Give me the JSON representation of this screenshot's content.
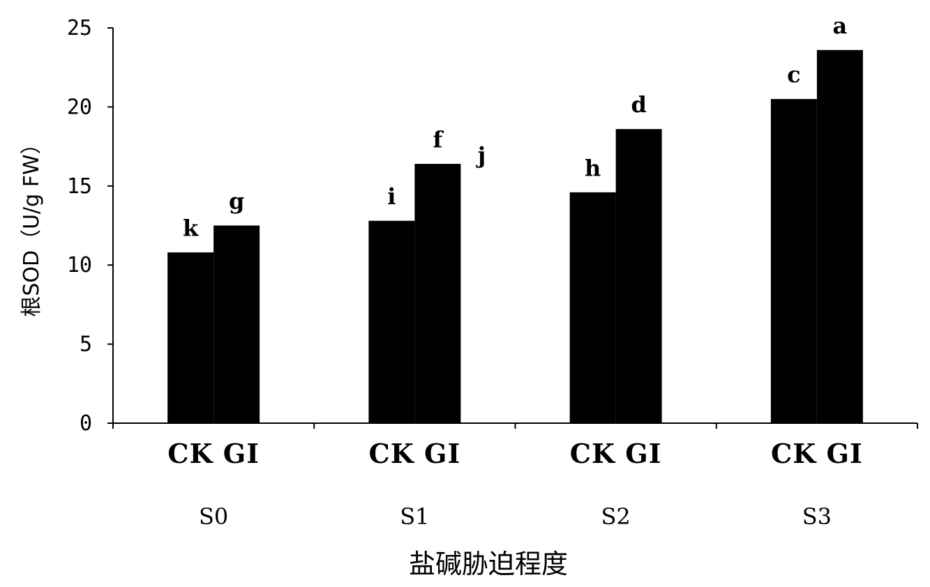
{
  "chart_data": {
    "type": "bar",
    "xlabel": "盐碱胁迫程度",
    "ylabel": "根SOD（U/g FW）",
    "ylim": [
      0,
      25
    ],
    "yticks": [
      0,
      5,
      10,
      15,
      20,
      25
    ],
    "groups": [
      "S0",
      "S1",
      "S2",
      "S3"
    ],
    "bar_pair_labels": [
      "CK GI",
      "CK GI",
      "CK GI",
      "CK GI"
    ],
    "series": [
      {
        "name": "CK",
        "values": [
          10.8,
          12.8,
          14.6,
          20.5
        ]
      },
      {
        "name": "GI",
        "values": [
          12.5,
          16.4,
          18.6,
          23.6
        ]
      }
    ],
    "bar_color": "#000000",
    "grid": false,
    "legend": "none",
    "annotations": [
      {
        "text": "k",
        "group": 0,
        "bar": "CK"
      },
      {
        "text": "g",
        "group": 0,
        "bar": "GI"
      },
      {
        "text": "i",
        "group": 1,
        "bar": "CK"
      },
      {
        "text": "f",
        "group": 1,
        "bar": "GI"
      },
      {
        "text": "j",
        "group": 1,
        "bar": "right"
      },
      {
        "text": "h",
        "group": 2,
        "bar": "CK"
      },
      {
        "text": "d",
        "group": 2,
        "bar": "GI"
      },
      {
        "text": "c",
        "group": 3,
        "bar": "CK"
      },
      {
        "text": "a",
        "group": 3,
        "bar": "GI"
      }
    ]
  }
}
